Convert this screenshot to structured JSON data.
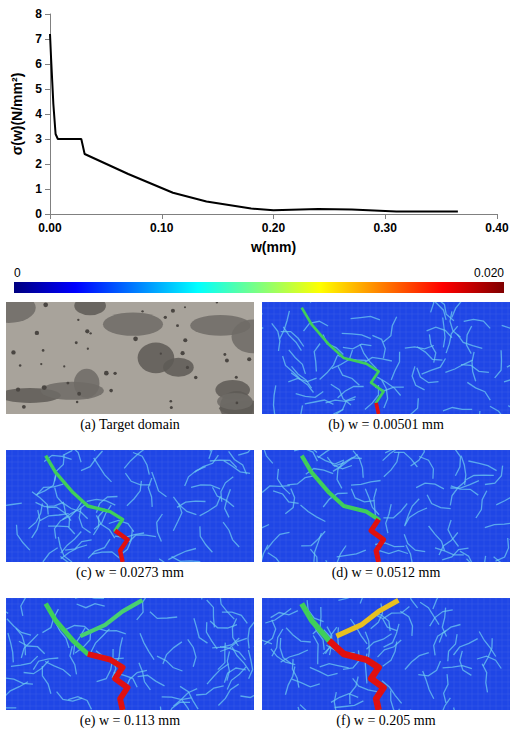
{
  "chart_data": {
    "type": "line",
    "x": [
      0,
      0.001,
      0.002,
      0.003,
      0.005,
      0.007,
      0.028,
      0.031,
      0.07,
      0.11,
      0.14,
      0.18,
      0.2,
      0.24,
      0.27,
      0.31,
      0.365
    ],
    "values": [
      7.2,
      6.2,
      5.3,
      4.4,
      3.2,
      3.0,
      3.0,
      2.4,
      1.6,
      0.85,
      0.5,
      0.22,
      0.15,
      0.2,
      0.18,
      0.1,
      0.1
    ],
    "color": "#000000",
    "line_style": "solid",
    "marker": "none",
    "grid": false,
    "xlabel": "w(mm)",
    "ylabel": "σ(w)(N/mm²)",
    "xlim": [
      0,
      0.4
    ],
    "ylim": [
      0,
      8
    ],
    "xticks": [
      {
        "value": 0,
        "label": "0.00"
      },
      {
        "value": 0.1,
        "label": "0.10"
      },
      {
        "value": 0.2,
        "label": "0.20"
      },
      {
        "value": 0.3,
        "label": "0.30"
      },
      {
        "value": 0.4,
        "label": "0.40"
      }
    ],
    "yticks": [
      0,
      1,
      2,
      3,
      4,
      5,
      6,
      7,
      8
    ]
  },
  "colorbar": {
    "range": [
      0,
      0.02
    ],
    "ticks": [
      0,
      {
        "value": 0.02,
        "label": "0.020"
      }
    ]
  },
  "panels": [
    {
      "caption": "(a) Target domain"
    },
    {
      "caption": "(b) w = 0.00501 mm"
    },
    {
      "caption": "(c) w = 0.0273 mm"
    },
    {
      "caption": "(d) w = 0.0512 mm"
    },
    {
      "caption": "(e) w = 0.113 mm"
    },
    {
      "caption": "(f) w = 0.205 mm"
    }
  ]
}
